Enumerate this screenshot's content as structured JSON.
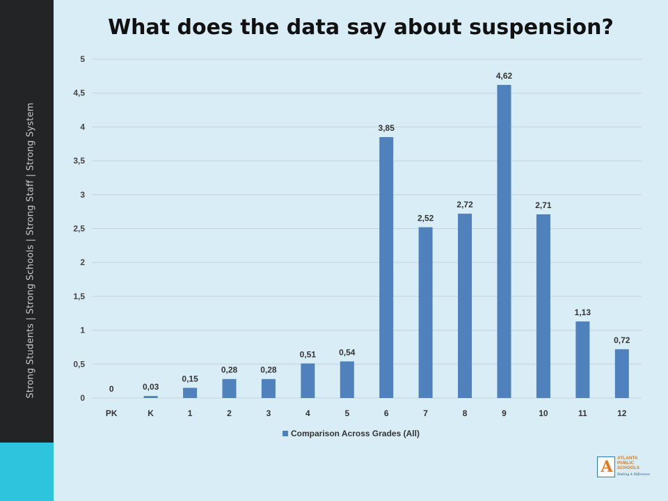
{
  "slide": {
    "title": "What does the data say about suspension?",
    "tagline": "Strong Students   |   Strong Schools   |   Strong Staff   |   Strong System",
    "logo": {
      "icon": "apple-a-logo-icon",
      "line1": "ATLANTA",
      "line2": "PUBLIC",
      "line3": "SCHOOLS",
      "motto": "Making A Difference"
    },
    "colors": {
      "sidebar": "#222426",
      "sidebar_accent": "#2ec4dd",
      "background": "#d8edf5",
      "bar": "#4f81bd"
    }
  },
  "chart_data": {
    "type": "bar",
    "title": "What does the data say about suspension?",
    "categories": [
      "PK",
      "K",
      "1",
      "2",
      "3",
      "4",
      "5",
      "6",
      "7",
      "8",
      "9",
      "10",
      "11",
      "12"
    ],
    "series": [
      {
        "name": "Comparison Across Grades (All)",
        "values": [
          0,
          0.03,
          0.15,
          0.28,
          0.28,
          0.51,
          0.54,
          3.85,
          2.52,
          2.72,
          4.62,
          2.71,
          1.13,
          0.72
        ],
        "labels": [
          "0",
          "0,03",
          "0,15",
          "0,28",
          "0,28",
          "0,51",
          "0,54",
          "3,85",
          "2,52",
          "2,72",
          "4,62",
          "2,71",
          "1,13",
          "0,72"
        ],
        "color": "#4f81bd"
      }
    ],
    "yticks": [
      0,
      0.5,
      1,
      1.5,
      2,
      2.5,
      3,
      3.5,
      4,
      4.5,
      5
    ],
    "ytick_labels": [
      "0",
      "0,5",
      "1",
      "1,5",
      "2",
      "2,5",
      "3",
      "3,5",
      "4",
      "4,5",
      "5"
    ],
    "ylim": [
      0,
      5
    ],
    "xlabel": "",
    "ylabel": "",
    "grid": true,
    "legend": "bottom"
  }
}
